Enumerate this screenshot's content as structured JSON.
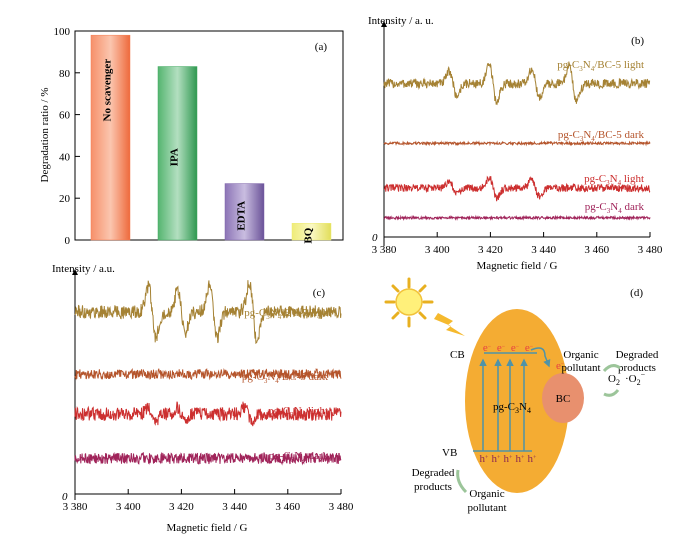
{
  "chart_data": [
    {
      "panel": "(a)",
      "type": "bar",
      "ylabel": "Degradation ratio / %",
      "ylim": [
        0,
        100
      ],
      "yticks": [
        "0",
        "20",
        "40",
        "60",
        "80",
        "100"
      ],
      "categories": [
        "No scavenger",
        "IPA",
        "EDTA",
        "BQ"
      ],
      "values": [
        98,
        83,
        27,
        8
      ],
      "colors": [
        "#F47B50",
        "#3EA85E",
        "#7C62A8",
        "#EDEB72"
      ]
    },
    {
      "panel": "(b)",
      "type": "line",
      "ylabel": "Intensity / a. u.",
      "xlabel": "Magnetic field / G",
      "origin": "0",
      "xlim": [
        3380,
        3480
      ],
      "xticks": [
        "3 380",
        "3 400",
        "3 420",
        "3 440",
        "3 460",
        "3 480"
      ],
      "series": [
        {
          "name": "pg-C3N4/BC-5 light",
          "label": {
            "pre": "pg-C",
            "s1": "3",
            "mid": "N",
            "s2": "4",
            "post": "/BC-5 light"
          },
          "color": "#A58234",
          "baseline": 0.72,
          "noise": 0.022,
          "features": [
            {
              "x": 3406,
              "a": 0.06
            },
            {
              "x": 3421,
              "a": 0.09
            },
            {
              "x": 3437,
              "a": 0.07
            },
            {
              "x": 3451,
              "a": 0.09
            }
          ]
        },
        {
          "name": "pg-C3N4/BC-5 dark",
          "label": {
            "pre": "pg-C",
            "s1": "3",
            "mid": "N",
            "s2": "4",
            "post": "/BC-5 dark"
          },
          "color": "#B5552C",
          "baseline": 0.44,
          "noise": 0.006,
          "features": []
        },
        {
          "name": "pg-C3N4 light",
          "label": {
            "pre": "pg-C",
            "s1": "3",
            "mid": "N",
            "s2": "4",
            "post": " light"
          },
          "color": "#CC2F2F",
          "baseline": 0.23,
          "noise": 0.018,
          "features": [
            {
              "x": 3406,
              "a": 0.03
            },
            {
              "x": 3421,
              "a": 0.05
            },
            {
              "x": 3437,
              "a": 0.04
            }
          ]
        },
        {
          "name": "pg-C3N4 dark",
          "label": {
            "pre": "pg-C",
            "s1": "3",
            "mid": "N",
            "s2": "4",
            "post": " dark"
          },
          "color": "#A0245A",
          "baseline": 0.09,
          "noise": 0.006,
          "features": []
        }
      ]
    },
    {
      "panel": "(c)",
      "type": "line",
      "ylabel": "Intensity / a.u.",
      "xlabel": "Magnetic field / G",
      "origin": "0",
      "xlim": [
        3380,
        3480
      ],
      "xticks": [
        "3 380",
        "3 400",
        "3 420",
        "3 440",
        "3 460",
        "3 480"
      ],
      "series": [
        {
          "name": "pg-C3N4/BC-5 light",
          "label": {
            "pre": "pg-C",
            "s1": "3",
            "mid": "N",
            "s2": "4",
            "post": "/BC-5 light"
          },
          "color": "#A58234",
          "baseline": 0.82,
          "noise": 0.03,
          "features": [
            {
              "x": 3409,
              "a": 0.12
            },
            {
              "x": 3420,
              "a": 0.1
            },
            {
              "x": 3432,
              "a": 0.12
            },
            {
              "x": 3447,
              "a": 0.14
            }
          ]
        },
        {
          "name": "pg-C3N4/BC-5 dark",
          "label": {
            "pre": "pg-C",
            "s1": "3",
            "mid": "N",
            "s2": "4",
            "post": "/BC-5 dark"
          },
          "color": "#B5552C",
          "baseline": 0.54,
          "noise": 0.022,
          "features": []
        },
        {
          "name": "pg-C3N4 light",
          "label": {
            "pre": "pg-C",
            "s1": "3",
            "mid": "N",
            "s2": "4",
            "post": " light"
          },
          "color": "#CC2F2F",
          "baseline": 0.36,
          "noise": 0.03,
          "features": [
            {
              "x": 3409,
              "a": 0.03
            },
            {
              "x": 3420,
              "a": 0.03
            },
            {
              "x": 3445,
              "a": 0.03
            }
          ]
        },
        {
          "name": "pg-C3N4 dark",
          "label": {
            "pre": "pg-C",
            "s1": "3",
            "mid": "N",
            "s2": "4",
            "post": " dark"
          },
          "color": "#A0245A",
          "baseline": 0.16,
          "noise": 0.025,
          "features": []
        }
      ]
    }
  ],
  "diagram": {
    "panel": "(d)",
    "cb": "CB",
    "vb": "VB",
    "electron": "e",
    "electron_sup": "−",
    "hole": "h",
    "hole_sup": "+",
    "catalyst": {
      "pre": "pg-C",
      "s1": "3",
      "mid": "N",
      "s2": "4"
    },
    "bc": "BC",
    "o2": {
      "base": "O",
      "sub": "2"
    },
    "superoxide": {
      "pre": "·O",
      "sub": "2",
      "sup": "−"
    },
    "top_organic": [
      "Organic",
      "pollutant"
    ],
    "top_degraded": [
      "Degraded",
      "products"
    ],
    "bottom_degraded": [
      "Degraded",
      "products"
    ],
    "bottom_organic": [
      "Organic",
      "pollutant"
    ],
    "colors": {
      "ellipse": "#F4AC33",
      "bc": "#E8906E",
      "arrow": "#4F93A8",
      "electron": "#E84040",
      "green": "#9CC59A"
    }
  }
}
